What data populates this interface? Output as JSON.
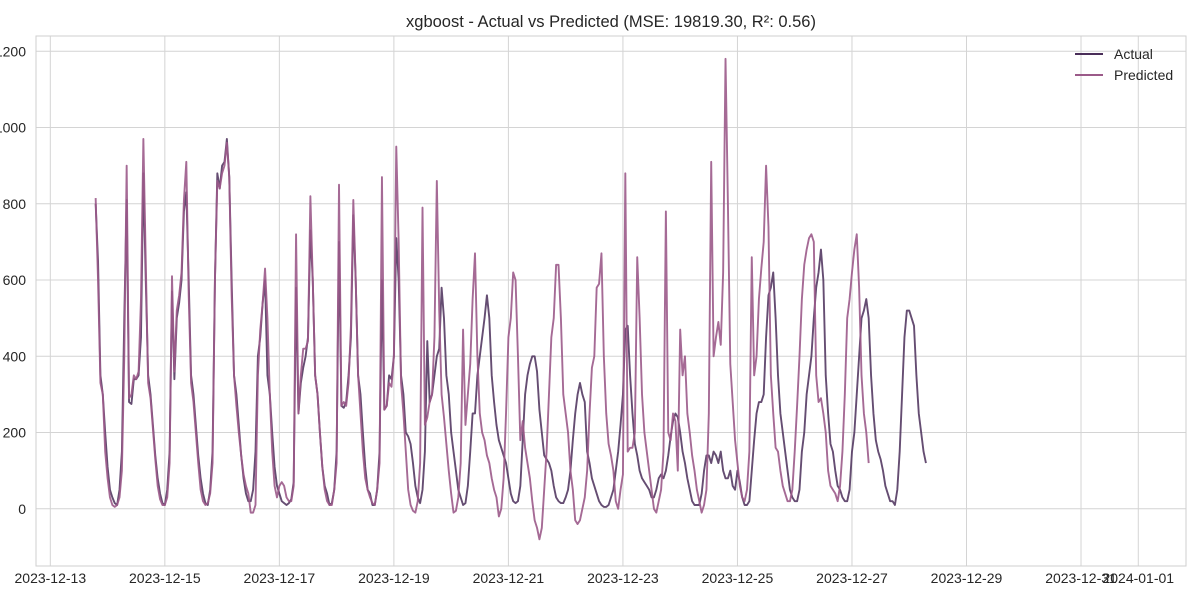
{
  "chart_data": {
    "type": "line",
    "title": "xgboost - Actual vs Predicted (MSE: 19819.30, R²: 0.56)",
    "xlabel": "",
    "ylabel": "",
    "x_range": [
      "2023-12-12T18:00",
      "2024-01-01T20:00"
    ],
    "ylim": [
      -150,
      1240
    ],
    "y_ticks": [
      0,
      200,
      400,
      600,
      800,
      1000,
      1200
    ],
    "x_ticks": [
      "2023-12-13",
      "2023-12-15",
      "2023-12-17",
      "2023-12-19",
      "2023-12-21",
      "2023-12-23",
      "2023-12-25",
      "2023-12-27",
      "2023-12-29",
      "2023-12-31",
      "2024-01-01"
    ],
    "grid": true,
    "legend_position": "top-right",
    "sampling": "hourly, starting 2023-12-13T19:00",
    "series": [
      {
        "name": "Actual",
        "color": "#4a2e59",
        "hourly_values": [
          800,
          650,
          350,
          300,
          200,
          110,
          50,
          30,
          15,
          10,
          50,
          150,
          500,
          810,
          280,
          275,
          340,
          340,
          350,
          450,
          880,
          600,
          350,
          300,
          220,
          140,
          80,
          40,
          15,
          10,
          50,
          150,
          570,
          340,
          500,
          540,
          600,
          780,
          830,
          600,
          350,
          300,
          220,
          140,
          80,
          40,
          15,
          10,
          50,
          150,
          600,
          880,
          840,
          900,
          910,
          970,
          870,
          600,
          350,
          300,
          220,
          140,
          80,
          40,
          20,
          20,
          50,
          150,
          400,
          450,
          540,
          600,
          350,
          300,
          200,
          110,
          60,
          40,
          20,
          15,
          10,
          15,
          25,
          70,
          580,
          250,
          330,
          370,
          400,
          450,
          730,
          600,
          350,
          300,
          200,
          110,
          60,
          40,
          10,
          15,
          50,
          150,
          700,
          270,
          265,
          280,
          350,
          450,
          770,
          600,
          350,
          300,
          200,
          110,
          50,
          40,
          10,
          10,
          50,
          150,
          600,
          260,
          270,
          350,
          340,
          400,
          710,
          600,
          350,
          300,
          200,
          190,
          170,
          120,
          60,
          30,
          15,
          50,
          150,
          440,
          280,
          300,
          350,
          400,
          420,
          580,
          500,
          350,
          300,
          200,
          150,
          100,
          50,
          30,
          10,
          15,
          60,
          150,
          250,
          250,
          350,
          400,
          450,
          500,
          560,
          500,
          350,
          280,
          220,
          180,
          160,
          140,
          120,
          80,
          40,
          20,
          15,
          20,
          60,
          180,
          300,
          350,
          380,
          400,
          400,
          360,
          260,
          200,
          140,
          130,
          120,
          100,
          60,
          30,
          20,
          15,
          15,
          30,
          50,
          100,
          180,
          250,
          300,
          330,
          300,
          280,
          150,
          120,
          80,
          60,
          40,
          20,
          10,
          5,
          5,
          10,
          30,
          50,
          100,
          150,
          220,
          300,
          470,
          480,
          350,
          250,
          170,
          140,
          100,
          80,
          70,
          60,
          50,
          30,
          30,
          50,
          80,
          90,
          80,
          100,
          140,
          190,
          230,
          250,
          240,
          200,
          150,
          120,
          80,
          50,
          20,
          10,
          10,
          10,
          40,
          100,
          140,
          140,
          120,
          150,
          140,
          120,
          150,
          100,
          80,
          80,
          100,
          60,
          50,
          100,
          70,
          30,
          10,
          10,
          20,
          100,
          180,
          250,
          280,
          280,
          300,
          450,
          560,
          580,
          620,
          500,
          350,
          250,
          200,
          150,
          100,
          50,
          30,
          20,
          20,
          50,
          150,
          200,
          300,
          350,
          400,
          500,
          580,
          620,
          680,
          600,
          350,
          250,
          170,
          150,
          100,
          60,
          50,
          30,
          20,
          20,
          50,
          150,
          200,
          300,
          400,
          500,
          520,
          550,
          500,
          350,
          250,
          180,
          150,
          130,
          100,
          60,
          40,
          20,
          20,
          10,
          50,
          150,
          300,
          450,
          520,
          520,
          500,
          480,
          350,
          250,
          200,
          150,
          120
        ]
      },
      {
        "name": "Predicted",
        "color": "#9b5a89",
        "hourly_values": [
          815,
          600,
          330,
          300,
          150,
          80,
          30,
          10,
          5,
          10,
          30,
          100,
          400,
          900,
          290,
          300,
          350,
          340,
          360,
          550,
          970,
          650,
          330,
          290,
          210,
          130,
          60,
          25,
          10,
          10,
          30,
          120,
          610,
          360,
          520,
          560,
          620,
          810,
          910,
          560,
          330,
          280,
          200,
          120,
          50,
          20,
          10,
          15,
          40,
          120,
          600,
          860,
          840,
          880,
          900,
          960,
          870,
          560,
          350,
          270,
          200,
          140,
          90,
          60,
          40,
          -10,
          -10,
          10,
          350,
          470,
          540,
          630,
          500,
          300,
          150,
          60,
          30,
          60,
          70,
          60,
          30,
          20,
          20,
          60,
          720,
          250,
          350,
          420,
          420,
          440,
          820,
          600,
          350,
          300,
          200,
          110,
          50,
          20,
          10,
          10,
          50,
          120,
          850,
          270,
          280,
          270,
          330,
          480,
          810,
          600,
          350,
          250,
          150,
          80,
          50,
          30,
          15,
          10,
          50,
          120,
          870,
          260,
          270,
          330,
          320,
          400,
          950,
          700,
          330,
          250,
          150,
          50,
          10,
          -5,
          -10,
          20,
          120,
          790,
          220,
          240,
          280,
          300,
          450,
          860,
          520,
          300,
          240,
          170,
          100,
          40,
          -10,
          -5,
          30,
          120,
          470,
          220,
          300,
          380,
          550,
          670,
          400,
          250,
          200,
          180,
          140,
          120,
          80,
          50,
          30,
          -20,
          0,
          80,
          250,
          450,
          500,
          620,
          600,
          400,
          180,
          230,
          160,
          120,
          80,
          20,
          -30,
          -50,
          -80,
          -50,
          50,
          150,
          300,
          450,
          500,
          640,
          640,
          500,
          300,
          250,
          200,
          100,
          50,
          -30,
          -40,
          -30,
          0,
          30,
          100,
          250,
          370,
          400,
          580,
          590,
          670,
          400,
          250,
          170,
          140,
          100,
          20,
          0,
          50,
          90,
          880,
          150,
          160,
          160,
          200,
          660,
          500,
          300,
          200,
          150,
          100,
          50,
          0,
          -10,
          20,
          50,
          150,
          780,
          200,
          180,
          250,
          230,
          100,
          470,
          350,
          400,
          250,
          200,
          140,
          100,
          50,
          20,
          -10,
          10,
          50,
          250,
          910,
          400,
          450,
          490,
          430,
          620,
          1180,
          800,
          380,
          280,
          180,
          120,
          60,
          30,
          20,
          50,
          150,
          660,
          350,
          400,
          550,
          630,
          700,
          900,
          740,
          350,
          250,
          160,
          150,
          100,
          60,
          40,
          20,
          20,
          50,
          150,
          270,
          400,
          550,
          640,
          680,
          710,
          720,
          700,
          350,
          280,
          290,
          250,
          200,
          100,
          60,
          50,
          40,
          20,
          60,
          150,
          300,
          500,
          550,
          620,
          680,
          720,
          580,
          350,
          250,
          200,
          120
        ]
      }
    ]
  }
}
